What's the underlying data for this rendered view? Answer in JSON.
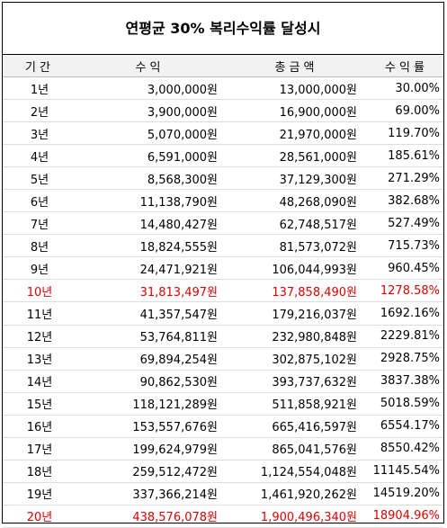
{
  "title": "연평균 30% 복리수익률 달성시",
  "headers": [
    "기간",
    "수익",
    "총금액",
    "수익률"
  ],
  "highlight_color": "#e00000",
  "rows": [
    {
      "period": "1년",
      "profit": "3,000,000원",
      "total": "13,000,000원",
      "rate": "30.00%",
      "highlight": false
    },
    {
      "period": "2년",
      "profit": "3,900,000원",
      "total": "16,900,000원",
      "rate": "69.00%",
      "highlight": false
    },
    {
      "period": "3년",
      "profit": "5,070,000원",
      "total": "21,970,000원",
      "rate": "119.70%",
      "highlight": false
    },
    {
      "period": "4년",
      "profit": "6,591,000원",
      "total": "28,561,000원",
      "rate": "185.61%",
      "highlight": false
    },
    {
      "period": "5년",
      "profit": "8,568,300원",
      "total": "37,129,300원",
      "rate": "271.29%",
      "highlight": false
    },
    {
      "period": "6년",
      "profit": "11,138,790원",
      "total": "48,268,090원",
      "rate": "382.68%",
      "highlight": false
    },
    {
      "period": "7년",
      "profit": "14,480,427원",
      "total": "62,748,517원",
      "rate": "527.49%",
      "highlight": false
    },
    {
      "period": "8년",
      "profit": "18,824,555원",
      "total": "81,573,072원",
      "rate": "715.73%",
      "highlight": false
    },
    {
      "period": "9년",
      "profit": "24,471,921원",
      "total": "106,044,993원",
      "rate": "960.45%",
      "highlight": false
    },
    {
      "period": "10년",
      "profit": "31,813,497원",
      "total": "137,858,490원",
      "rate": "1278.58%",
      "highlight": true
    },
    {
      "period": "11년",
      "profit": "41,357,547원",
      "total": "179,216,037원",
      "rate": "1692.16%",
      "highlight": false
    },
    {
      "period": "12년",
      "profit": "53,764,811원",
      "total": "232,980,848원",
      "rate": "2229.81%",
      "highlight": false
    },
    {
      "period": "13년",
      "profit": "69,894,254원",
      "total": "302,875,102원",
      "rate": "2928.75%",
      "highlight": false
    },
    {
      "period": "14년",
      "profit": "90,862,530원",
      "total": "393,737,632원",
      "rate": "3837.38%",
      "highlight": false
    },
    {
      "period": "15년",
      "profit": "118,121,289원",
      "total": "511,858,921원",
      "rate": "5018.59%",
      "highlight": false
    },
    {
      "period": "16년",
      "profit": "153,557,676원",
      "total": "665,416,597원",
      "rate": "6554.17%",
      "highlight": false
    },
    {
      "period": "17년",
      "profit": "199,624,979원",
      "total": "865,041,576원",
      "rate": "8550.42%",
      "highlight": false
    },
    {
      "period": "18년",
      "profit": "259,512,472원",
      "total": "1,124,554,048원",
      "rate": "11145.54%",
      "highlight": false
    },
    {
      "period": "19년",
      "profit": "337,366,214원",
      "total": "1,461,920,262원",
      "rate": "14519.20%",
      "highlight": false
    },
    {
      "period": "20년",
      "profit": "438,576,078원",
      "total": "1,900,496,340원",
      "rate": "18904.96%",
      "highlight": true
    }
  ]
}
